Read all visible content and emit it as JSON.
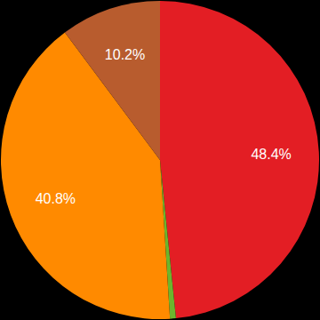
{
  "chart_data": {
    "type": "pie",
    "values": [
      48.4,
      0.6,
      40.8,
      10.2
    ],
    "value_labels": [
      "48.4%",
      null,
      "40.8%",
      "10.2%"
    ],
    "colors": [
      "#e31e24",
      "#6cb52d",
      "#ff8a00",
      "#b85c2e"
    ],
    "data_labels": true
  }
}
